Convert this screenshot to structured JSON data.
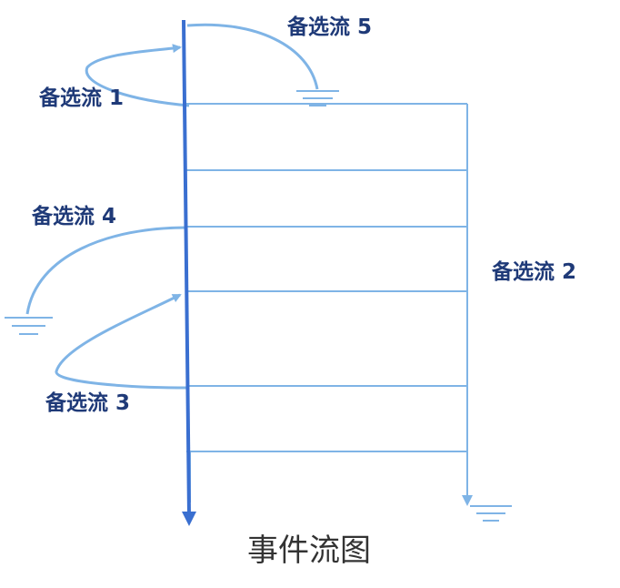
{
  "diagram": {
    "caption": "事件流图",
    "labels": {
      "alt1": "备选流 1",
      "alt2": "备选流 2",
      "alt3": "备选流 3",
      "alt4": "备选流 4",
      "alt5": "备选流 5"
    },
    "colors": {
      "main_flow": "#3a6fd0",
      "alt_flow": "#7fb4e6",
      "label": "#1f3a78",
      "caption": "#333333"
    }
  }
}
